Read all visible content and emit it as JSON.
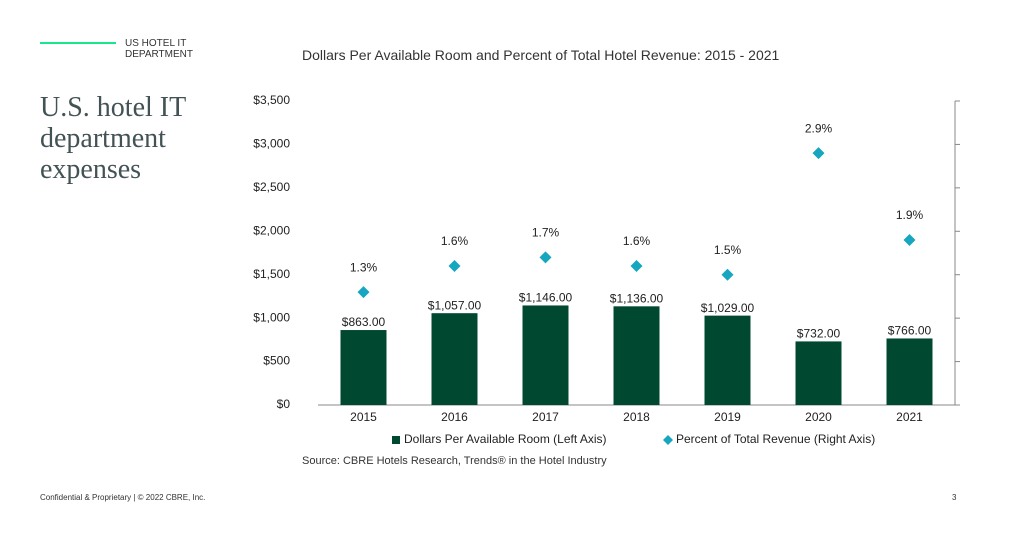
{
  "header": {
    "section": "US HOTEL IT DEPARTMENT",
    "title": "U.S. hotel IT department expenses"
  },
  "chart_data": {
    "type": "bar",
    "title": "Dollars Per Available Room and Percent of Total Hotel Revenue: 2015 - 2021",
    "categories": [
      "2015",
      "2016",
      "2017",
      "2018",
      "2019",
      "2020",
      "2021"
    ],
    "series": [
      {
        "name": "Dollars Per Available Room (Left Axis)",
        "type": "bar",
        "color": "#00482f",
        "values": [
          863,
          1057,
          1146,
          1136,
          1029,
          732,
          766
        ],
        "value_labels": [
          "$863.00",
          "$1,057.00",
          "$1,146.00",
          "$1,136.00",
          "$1,029.00",
          "$732.00",
          "$766.00"
        ]
      },
      {
        "name": "Percent of Total Revenue (Right Axis)",
        "type": "scatter",
        "axis": "y2",
        "color": "#17a6bf",
        "values": [
          1.3,
          1.6,
          1.7,
          1.6,
          1.5,
          2.9,
          1.9
        ],
        "value_labels": [
          "1.3%",
          "1.6%",
          "1.7%",
          "1.6%",
          "1.5%",
          "2.9%",
          "1.9%"
        ]
      }
    ],
    "ylim": [
      0,
      3500
    ],
    "yticks": [
      {
        "value": 0,
        "label": "$0"
      },
      {
        "value": 500,
        "label": "$500"
      },
      {
        "value": 1000,
        "label": "$1,000"
      },
      {
        "value": 1500,
        "label": "$1,500"
      },
      {
        "value": 2000,
        "label": "$2,000"
      },
      {
        "value": 2500,
        "label": "$2,500"
      },
      {
        "value": 3000,
        "label": "$3,000"
      },
      {
        "value": 3500,
        "label": "$3,500"
      }
    ],
    "y2lim": [
      0,
      3.5
    ],
    "y2ticks": [
      0,
      0.5,
      1,
      1.5,
      2,
      2.5,
      3,
      3.5
    ],
    "grid": false,
    "legend": "bottom",
    "source": "Source: CBRE Hotels Research, Trends® in the Hotel Industry"
  },
  "footer": {
    "text": "Confidential & Proprietary | © 2022 CBRE, Inc.",
    "page": "3"
  }
}
